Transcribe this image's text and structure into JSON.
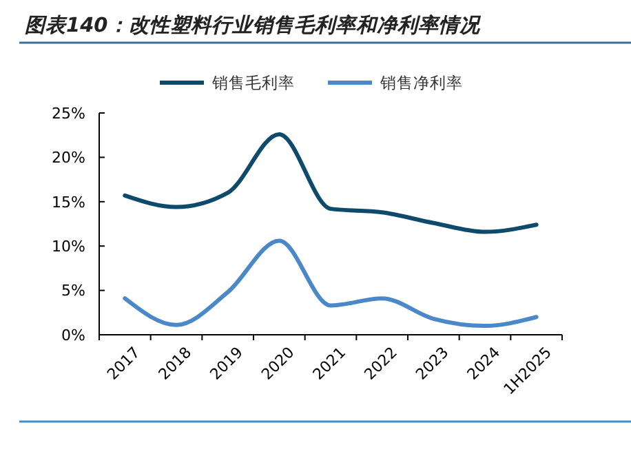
{
  "chart_data": {
    "type": "line",
    "title": "图表140：改性塑料行业销售毛利率和净利率情况",
    "categories": [
      "2017",
      "2018",
      "2019",
      "2020",
      "2021",
      "2022",
      "2023",
      "2024",
      "1H2025"
    ],
    "series": [
      {
        "name": "销售毛利率",
        "color": "#0d4a6b",
        "values": [
          15.7,
          14.4,
          16.0,
          22.6,
          14.2,
          13.8,
          12.6,
          11.6,
          12.4
        ]
      },
      {
        "name": "销售净利率",
        "color": "#4a88c7",
        "values": [
          4.1,
          1.1,
          4.8,
          10.6,
          3.3,
          4.1,
          1.8,
          1.0,
          2.0
        ]
      }
    ],
    "ylim": [
      0,
      25
    ],
    "yticks": [
      {
        "value": 0,
        "label": "0%"
      },
      {
        "value": 5,
        "label": "5%"
      },
      {
        "value": 10,
        "label": "10%"
      },
      {
        "value": 15,
        "label": "15%"
      },
      {
        "value": 20,
        "label": "20%"
      },
      {
        "value": 25,
        "label": "25%"
      }
    ],
    "grid": false,
    "legend": "top",
    "marker": "none",
    "line_style": "solid"
  }
}
